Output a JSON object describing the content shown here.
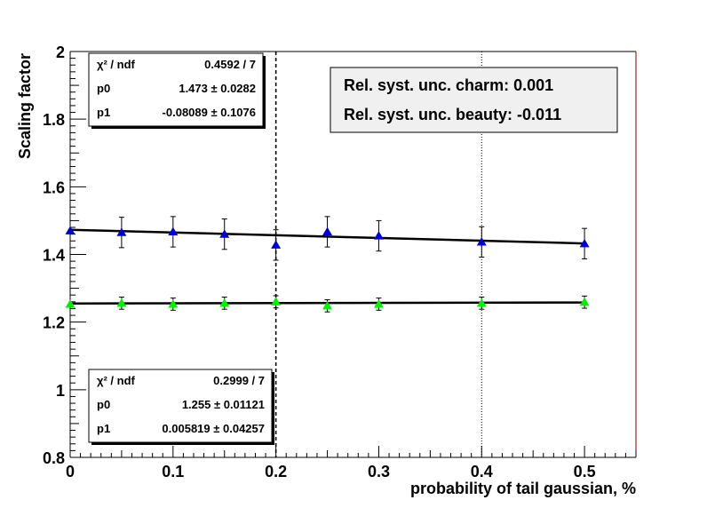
{
  "chart_data": {
    "type": "scatter",
    "xlabel": "probability of tail gaussian, %",
    "ylabel": "Scaling factor",
    "xlim": [
      0,
      0.55
    ],
    "ylim": [
      0.8,
      2.0
    ],
    "x_ticks": [
      "0",
      "0.1",
      "0.2",
      "0.3",
      "0.4",
      "0.5"
    ],
    "y_ticks": [
      "0.8",
      "1",
      "1.2",
      "1.4",
      "1.6",
      "1.8",
      "2"
    ],
    "grid": false,
    "series": [
      {
        "color": "#0000cc",
        "marker": "triangle",
        "points": [
          {
            "x": 0.0,
            "y": 1.47,
            "err": 0.0
          },
          {
            "x": 0.05,
            "y": 1.465,
            "err": 0.045
          },
          {
            "x": 0.1,
            "y": 1.467,
            "err": 0.045
          },
          {
            "x": 0.15,
            "y": 1.46,
            "err": 0.045
          },
          {
            "x": 0.2,
            "y": 1.428,
            "err": 0.045
          },
          {
            "x": 0.25,
            "y": 1.467,
            "err": 0.045
          },
          {
            "x": 0.3,
            "y": 1.455,
            "err": 0.045
          },
          {
            "x": 0.4,
            "y": 1.437,
            "err": 0.045
          },
          {
            "x": 0.5,
            "y": 1.432,
            "err": 0.045
          }
        ],
        "fit": {
          "p0": 1.473,
          "p1": -0.08089
        }
      },
      {
        "color": "#00ee00",
        "marker": "triangle",
        "points": [
          {
            "x": 0.0,
            "y": 1.253,
            "err": 0.0
          },
          {
            "x": 0.05,
            "y": 1.256,
            "err": 0.018
          },
          {
            "x": 0.1,
            "y": 1.253,
            "err": 0.018
          },
          {
            "x": 0.15,
            "y": 1.256,
            "err": 0.018
          },
          {
            "x": 0.2,
            "y": 1.26,
            "err": 0.018
          },
          {
            "x": 0.25,
            "y": 1.248,
            "err": 0.018
          },
          {
            "x": 0.3,
            "y": 1.253,
            "err": 0.018
          },
          {
            "x": 0.4,
            "y": 1.256,
            "err": 0.018
          },
          {
            "x": 0.5,
            "y": 1.259,
            "err": 0.018
          }
        ],
        "fit": {
          "p0": 1.255,
          "p1": 0.005819
        }
      }
    ],
    "vlines": [
      {
        "x": 0.2,
        "style": "dashed"
      },
      {
        "x": 0.4,
        "style": "dotted"
      }
    ],
    "stat_boxes": [
      {
        "position": "top-left",
        "rows": [
          [
            "χ² / ndf",
            "0.4592 / 7"
          ],
          [
            "p0",
            "1.473 ± 0.0282"
          ],
          [
            "p1",
            "-0.08089 ± 0.1076"
          ]
        ]
      },
      {
        "position": "bottom-left",
        "rows": [
          [
            "χ² / ndf",
            "0.2999 / 7"
          ],
          [
            "p0",
            "1.255 ± 0.01121"
          ],
          [
            "p1",
            "0.005819 ± 0.04257"
          ]
        ]
      }
    ],
    "annotation": {
      "position": "top-right",
      "lines": [
        "Rel. syst. unc. charm: 0.001",
        "Rel. syst. unc. beauty: -0.011"
      ]
    }
  }
}
